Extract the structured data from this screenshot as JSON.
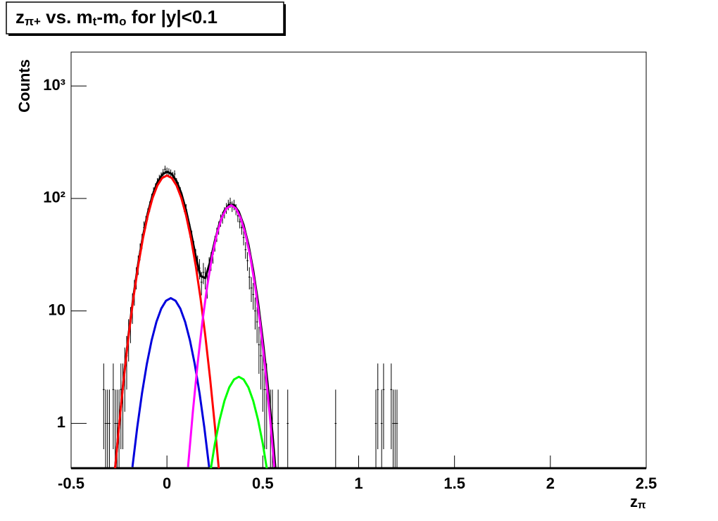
{
  "chart_data": {
    "type": "scatter",
    "title": [
      "z",
      "π+",
      " vs. m",
      "t",
      "-m",
      "o",
      " for |y|<0.1"
    ],
    "x_label": [
      "z",
      "π"
    ],
    "y_label": "Counts",
    "log_y": true,
    "xlim": [
      -0.5,
      2.5
    ],
    "xticks": [
      -0.5,
      0,
      0.5,
      1,
      1.5,
      2,
      2.5
    ],
    "ylim": [
      0.4,
      2000
    ],
    "yticks": [
      1,
      10,
      {
        "value": 100,
        "label": "10²"
      },
      {
        "value": 1000,
        "label": "10³"
      }
    ],
    "color": "#000000",
    "xerr": 0.005,
    "x": [
      -0.33,
      -0.32,
      -0.31,
      -0.3,
      -0.28,
      -0.27,
      -0.26,
      -0.25,
      -0.24,
      -0.23,
      -0.22,
      -0.21,
      -0.2,
      -0.19,
      -0.18,
      -0.17,
      -0.16,
      -0.15,
      -0.14,
      -0.13,
      -0.12,
      -0.11,
      -0.1,
      -0.09,
      -0.08,
      -0.07,
      -0.06,
      -0.05,
      -0.04,
      -0.03,
      -0.02,
      -0.01,
      0.0,
      0.01,
      0.02,
      0.03,
      0.04,
      0.05,
      0.06,
      0.07,
      0.08,
      0.09,
      0.1,
      0.11,
      0.12,
      0.13,
      0.14,
      0.15,
      0.16,
      0.17,
      0.18,
      0.19,
      0.2,
      0.21,
      0.22,
      0.23,
      0.24,
      0.25,
      0.26,
      0.27,
      0.28,
      0.29,
      0.3,
      0.31,
      0.32,
      0.33,
      0.34,
      0.35,
      0.36,
      0.37,
      0.38,
      0.39,
      0.4,
      0.41,
      0.42,
      0.43,
      0.44,
      0.45,
      0.46,
      0.47,
      0.48,
      0.49,
      0.5,
      0.51,
      0.52,
      0.54,
      0.55,
      0.58,
      0.63,
      0.88,
      1.09,
      1.1,
      1.12,
      1.13,
      1.17,
      1.18,
      1.19,
      1.2
    ],
    "values": [
      2,
      1,
      1,
      1,
      2,
      1,
      1,
      1,
      2,
      2,
      3,
      4,
      6,
      8,
      11,
      15,
      20,
      26,
      34,
      42,
      55,
      62,
      73,
      85,
      100,
      115,
      125,
      140,
      150,
      158,
      170,
      182,
      175,
      172,
      168,
      160,
      165,
      140,
      128,
      115,
      100,
      85,
      80,
      62,
      52,
      45,
      36,
      30,
      26,
      24,
      18,
      22,
      20,
      17,
      25,
      28,
      32,
      40,
      48,
      55,
      64,
      68,
      75,
      82,
      88,
      92,
      85,
      88,
      80,
      70,
      62,
      55,
      45,
      35,
      28,
      20,
      16,
      14,
      10,
      8,
      5,
      4,
      3,
      2,
      2,
      1,
      1,
      1,
      1,
      1,
      1,
      2,
      1,
      2,
      2,
      1,
      1,
      1
    ],
    "errors": [
      1.41,
      1,
      1,
      1,
      1.41,
      1,
      1,
      1,
      1.41,
      1.41,
      1.73,
      2,
      2.45,
      2.83,
      3.32,
      3.87,
      4.47,
      5.1,
      5.83,
      6.48,
      7.42,
      7.87,
      8.54,
      9.22,
      10,
      10.72,
      11.18,
      11.83,
      12.25,
      12.57,
      13.04,
      13.49,
      13.23,
      13.11,
      12.96,
      12.65,
      12.85,
      11.83,
      11.31,
      10.72,
      10,
      9.22,
      8.94,
      7.87,
      7.21,
      6.71,
      6,
      5.48,
      5.1,
      4.9,
      4.24,
      4.69,
      4.47,
      4.12,
      5,
      5.29,
      5.66,
      6.32,
      6.93,
      7.42,
      8,
      8.25,
      8.66,
      9.06,
      9.38,
      9.59,
      9.22,
      9.38,
      8.94,
      8.37,
      7.87,
      7.42,
      6.71,
      5.92,
      5.29,
      4.47,
      4,
      3.74,
      3.16,
      2.83,
      2.24,
      2,
      1.73,
      1.41,
      1.41,
      1,
      1,
      1,
      1,
      1,
      1,
      1.41,
      1,
      1.41,
      1.41,
      1,
      1,
      1
    ],
    "fits": [
      {
        "type": "line",
        "color": "#000000",
        "x": [
          -0.275,
          -0.25,
          -0.225,
          -0.2,
          -0.175,
          -0.15,
          -0.125,
          -0.1,
          -0.075,
          -0.05,
          -0.025,
          0,
          0.025,
          0.05,
          0.075,
          0.1,
          0.125,
          0.15,
          0.175,
          0.2,
          0.225,
          0.25,
          0.275,
          0.3,
          0.325,
          0.35,
          0.375,
          0.4,
          0.425,
          0.45,
          0.475,
          0.5,
          0.525,
          0.55,
          0.575
        ],
        "values": [
          0.33,
          0.97,
          2.59,
          6.23,
          13.5,
          26.4,
          46.5,
          74.2,
          107,
          138.9,
          162.9,
          172.6,
          165,
          142.4,
          111.1,
          78.2,
          50.2,
          30.7,
          20.5,
          19.6,
          27.3,
          42.1,
          60.9,
          78.1,
          88.2,
          87.5,
          76.0,
          58.1,
          39.0,
          23.0,
          12.0,
          5.52,
          2.27,
          0.83,
          0.26
        ]
      },
      {
        "type": "line",
        "color": "#ff0000",
        "x": [
          -0.275,
          -0.25,
          -0.225,
          -0.2,
          -0.175,
          -0.15,
          -0.125,
          -0.1,
          -0.075,
          -0.05,
          -0.025,
          0,
          0.025,
          0.05,
          0.075,
          0.1,
          0.125,
          0.15,
          0.175,
          0.2,
          0.225,
          0.25,
          0.275
        ],
        "values": [
          0.325,
          0.95,
          2.52,
          6.03,
          13.0,
          25.3,
          44.4,
          70.5,
          101,
          130.4,
          152,
          160,
          152,
          130.4,
          101,
          70.5,
          44.4,
          25.3,
          13.0,
          6.03,
          2.52,
          0.95,
          0.325
        ]
      },
      {
        "type": "line",
        "color": "#0000dd",
        "x": [
          -0.18,
          -0.155,
          -0.13,
          -0.105,
          -0.08,
          -0.055,
          -0.03,
          -0.005,
          0.02,
          0.045,
          0.07,
          0.095,
          0.12,
          0.145,
          0.17,
          0.195,
          0.22
        ],
        "values": [
          0.41,
          0.92,
          1.86,
          3.37,
          5.47,
          7.99,
          10.47,
          12.32,
          13,
          12.32,
          10.47,
          7.99,
          5.47,
          3.37,
          1.86,
          0.92,
          0.41
        ]
      },
      {
        "type": "line",
        "color": "#ff00ff",
        "x": [
          0.11,
          0.135,
          0.16,
          0.185,
          0.21,
          0.235,
          0.26,
          0.285,
          0.31,
          0.335,
          0.36,
          0.385,
          0.41,
          0.435,
          0.46,
          0.485,
          0.51,
          0.535,
          0.56
        ],
        "values": [
          0.41,
          1.26,
          3.4,
          8.02,
          16.6,
          30.2,
          48.0,
          66.8,
          81.4,
          87,
          81.4,
          66.8,
          48.0,
          30.2,
          16.6,
          8.02,
          3.4,
          1.26,
          0.41
        ]
      },
      {
        "type": "line",
        "color": "#00ff00",
        "x": [
          0.225,
          0.25,
          0.275,
          0.3,
          0.325,
          0.35,
          0.375,
          0.4,
          0.425,
          0.45,
          0.475,
          0.5,
          0.525
        ],
        "values": [
          0.36,
          0.66,
          1.08,
          1.59,
          2.09,
          2.46,
          2.6,
          2.46,
          2.09,
          1.59,
          1.08,
          0.66,
          0.36
        ]
      }
    ]
  }
}
